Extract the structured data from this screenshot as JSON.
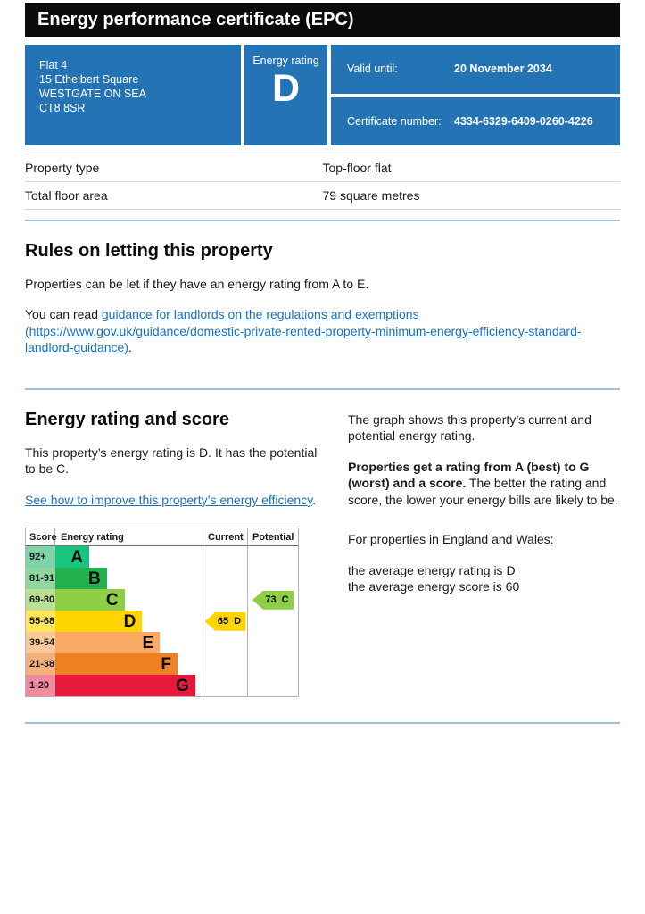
{
  "page": {
    "title": "Energy performance certificate (EPC)"
  },
  "summary": {
    "address_lines": [
      "Flat 4",
      "15 Ethelbert Square",
      "WESTGATE ON SEA",
      "CT8 8SR"
    ],
    "energy_rating_label": "Energy rating",
    "energy_rating": "D",
    "valid_until_label": "Valid until:",
    "valid_until_value": "20 November 2034",
    "certificate_number_label": "Certificate number:",
    "certificate_number_value": "4334-6329-6409-0260-4226"
  },
  "facts": {
    "rows": [
      {
        "label": "Property type",
        "value": "Top-floor flat"
      },
      {
        "label": "Total floor area",
        "value": "79 square metres"
      }
    ]
  },
  "rules": {
    "heading": "Rules on letting this property",
    "p1": "Properties can be let if they have an energy rating from A to E.",
    "p2_prefix": "You can read ",
    "link_text": "guidance for landlords on the regulations and exemptions (https://www.gov.uk/guidance/domestic-private-rented-property-minimum-energy-efficiency-standard-landlord-guidance)",
    "p2_suffix": "."
  },
  "rating_section": {
    "heading": "Energy rating and score",
    "p1": "This property’s energy rating is D. It has the potential to be C.",
    "link_text": "See how to improve this property’s energy efficiency",
    "link_suffix": ".",
    "right_p1": "The graph shows this property’s current and potential energy rating.",
    "right_p2_bold": "Properties get a rating from A (best) to G (worst) and a score.",
    "right_p2_rest": " The better the rating and score, the lower your energy bills are likely to be.",
    "right_p3": "For properties in England and Wales:",
    "right_p4_line1": "the average energy rating is D",
    "right_p4_line2": "the average energy score is 60"
  },
  "chart_data": {
    "type": "bar",
    "title": "Energy rating and score chart",
    "headers": {
      "score": "Score",
      "rating": "Energy rating",
      "current": "Current",
      "potential": "Potential"
    },
    "bands": [
      {
        "score_range": "92+",
        "letter": "A",
        "color": "#18c57e",
        "tint": "#80d2a9",
        "width_pct": 23
      },
      {
        "score_range": "81-91",
        "letter": "B",
        "color": "#21b14f",
        "tint": "#8fd6a1",
        "width_pct": 35
      },
      {
        "score_range": "69-80",
        "letter": "C",
        "color": "#8dce46",
        "tint": "#bce093",
        "width_pct": 47
      },
      {
        "score_range": "55-68",
        "letter": "D",
        "color": "#ffd500",
        "tint": "#ffe45e",
        "width_pct": 59
      },
      {
        "score_range": "39-54",
        "letter": "E",
        "color": "#fbaa66",
        "tint": "#fac896",
        "width_pct": 71
      },
      {
        "score_range": "21-38",
        "letter": "F",
        "color": "#ee8122",
        "tint": "#f3af7c",
        "width_pct": 83
      },
      {
        "score_range": "1-20",
        "letter": "G",
        "color": "#e8173c",
        "tint": "#f18a9e",
        "width_pct": 95
      }
    ],
    "current": {
      "score": 65,
      "band": "D",
      "label": "65 D",
      "color": "#ffd500"
    },
    "potential": {
      "score": 73,
      "band": "C",
      "label": "73 C",
      "color": "#8dce46"
    }
  },
  "colors": {
    "panel_blue": "#2373b5",
    "masthead_black": "#0b0b0b",
    "link_blue": "#1d70b8",
    "separator_blue": "#a4bfd1"
  }
}
